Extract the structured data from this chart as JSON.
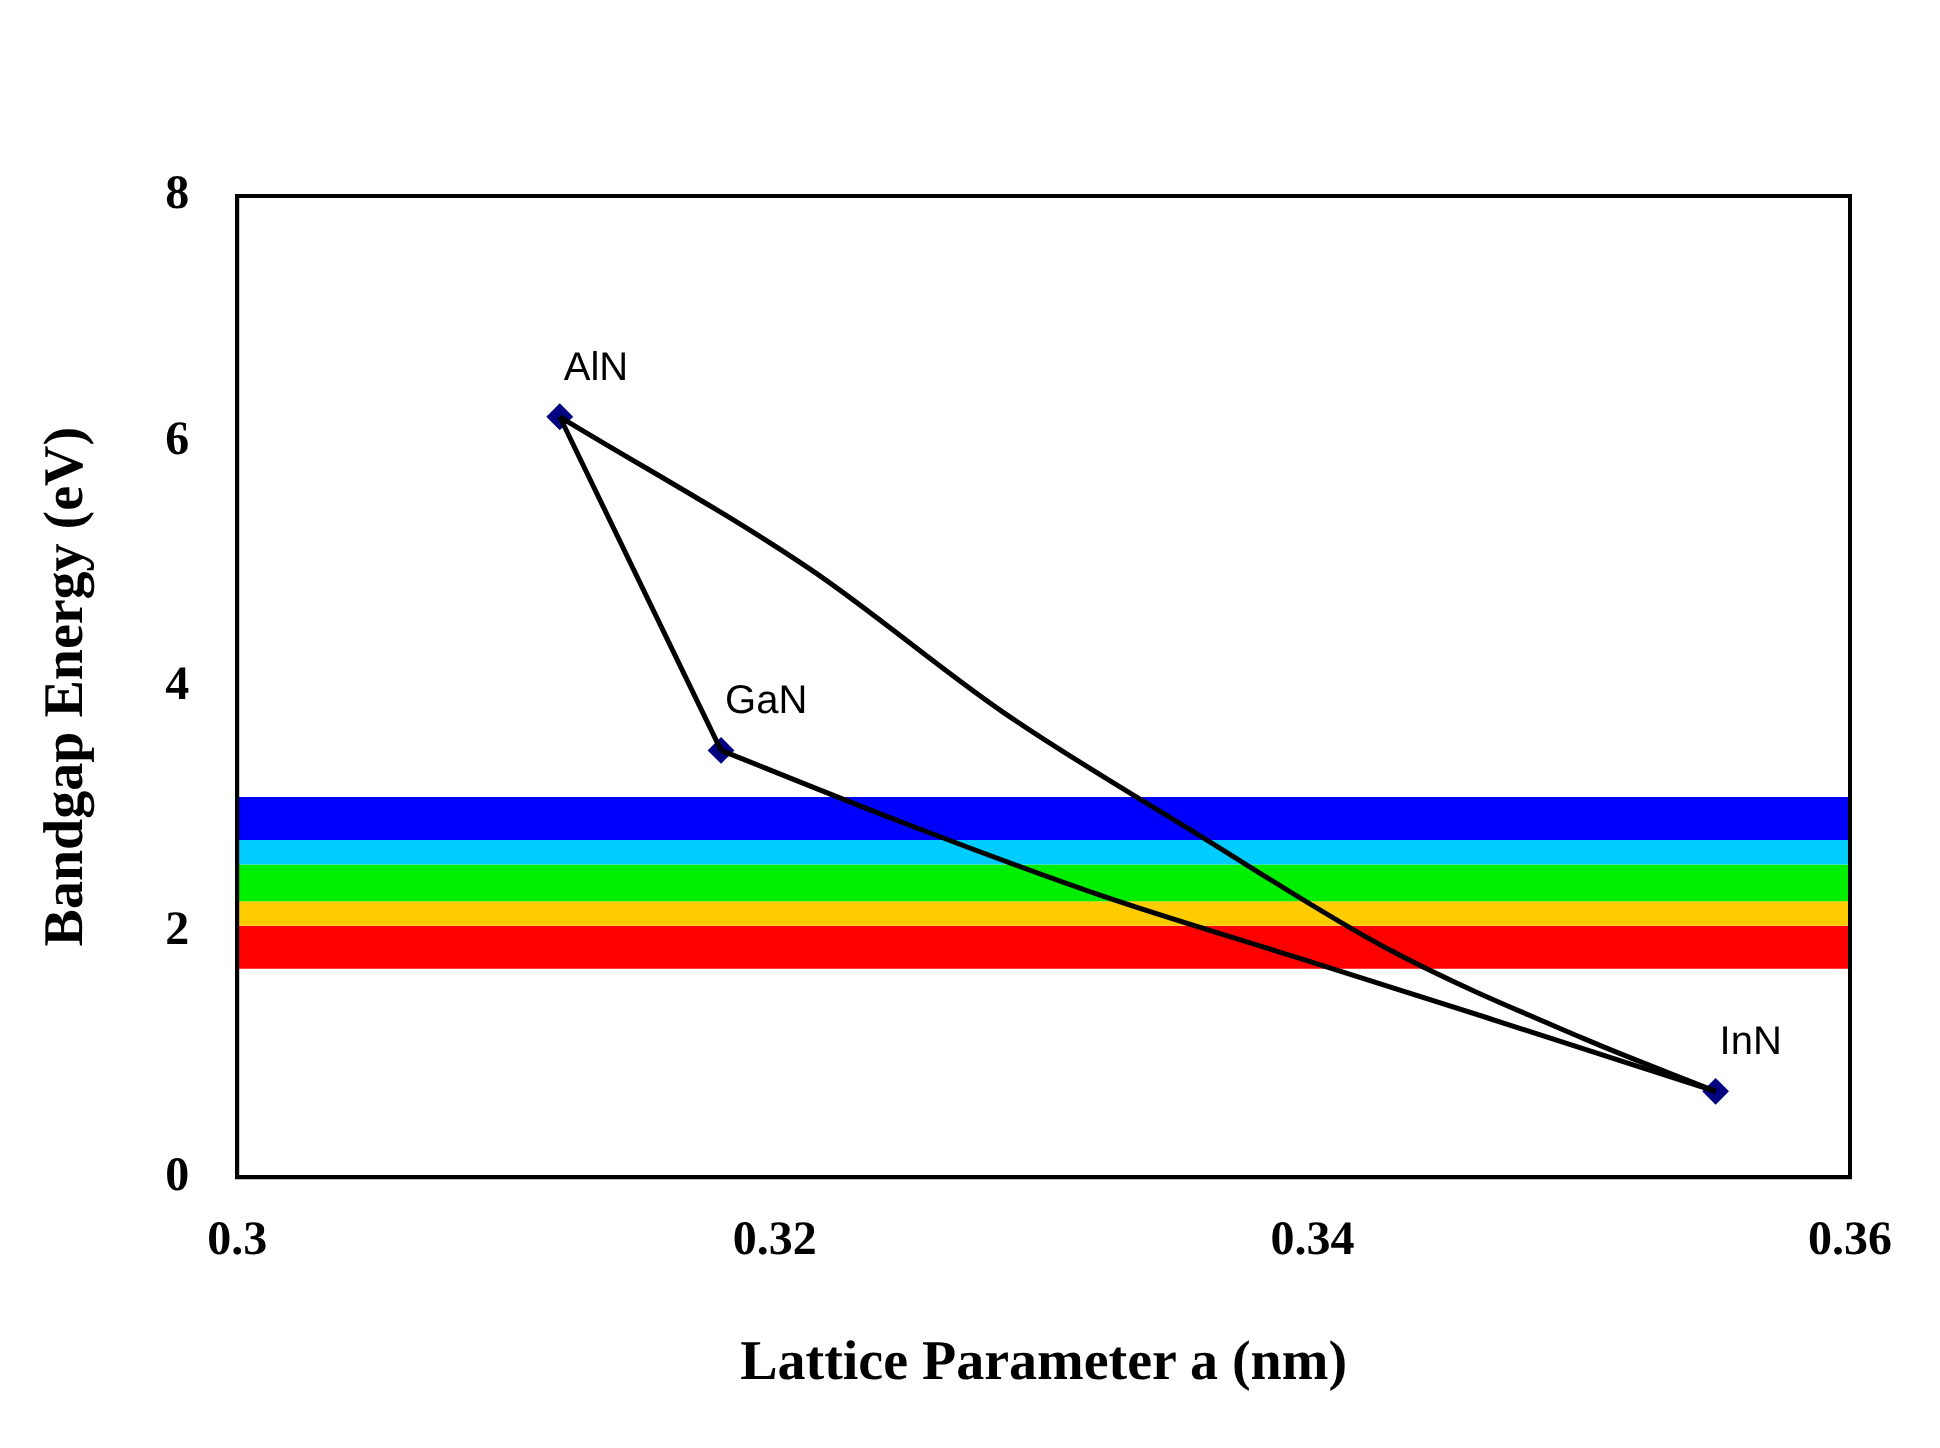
{
  "chart_data": {
    "type": "scatter",
    "xlabel": "Lattice Parameter a (nm)",
    "ylabel": "Bandgap Energy (eV)",
    "xlim": [
      0.3,
      0.36
    ],
    "xticks": [
      0.3,
      0.32,
      0.34,
      0.36
    ],
    "ylim": [
      0,
      8
    ],
    "yticks": [
      0,
      2,
      4,
      6,
      8
    ],
    "grid": false,
    "legend": false,
    "series": [
      {
        "type": "line",
        "color": "#000000",
        "marker": "none",
        "x": [
          0.312,
          0.318
        ],
        "values": [
          6.2,
          3.48
        ]
      },
      {
        "type": "line",
        "color": "#000000",
        "marker": "none",
        "x": [
          0.318,
          0.3249,
          0.3321,
          0.3393,
          0.3465,
          0.355
        ],
        "values": [
          3.48,
          2.88,
          2.3,
          1.8,
          1.3,
          0.7
        ]
      },
      {
        "type": "line",
        "color": "#000000",
        "marker": "none",
        "x": [
          0.312,
          0.3213,
          0.3285,
          0.3357,
          0.3429,
          0.3501,
          0.355
        ],
        "values": [
          6.2,
          4.96,
          3.79,
          2.8,
          1.85,
          1.13,
          0.7
        ]
      },
      {
        "type": "scatter",
        "color": "#000080",
        "marker": "diamond",
        "x": [
          0.312,
          0.318,
          0.355
        ],
        "values": [
          6.2,
          3.48,
          0.7
        ]
      }
    ],
    "bands": [
      {
        "axis": "y",
        "from": 1.7,
        "to": 2.05,
        "color": "#ff0000"
      },
      {
        "axis": "y",
        "from": 2.05,
        "to": 2.25,
        "color": "#ffcc00"
      },
      {
        "axis": "y",
        "from": 2.25,
        "to": 2.55,
        "color": "#00ee00"
      },
      {
        "axis": "y",
        "from": 2.55,
        "to": 2.75,
        "color": "#00ccff"
      },
      {
        "axis": "y",
        "from": 2.75,
        "to": 3.1,
        "color": "#0000ff"
      }
    ],
    "annotations": [
      {
        "text": "AlN",
        "x": 0.312,
        "y": 6.2
      },
      {
        "text": "GaN",
        "x": 0.318,
        "y": 3.48
      },
      {
        "text": "InN",
        "x": 0.355,
        "y": 0.7
      }
    ]
  }
}
